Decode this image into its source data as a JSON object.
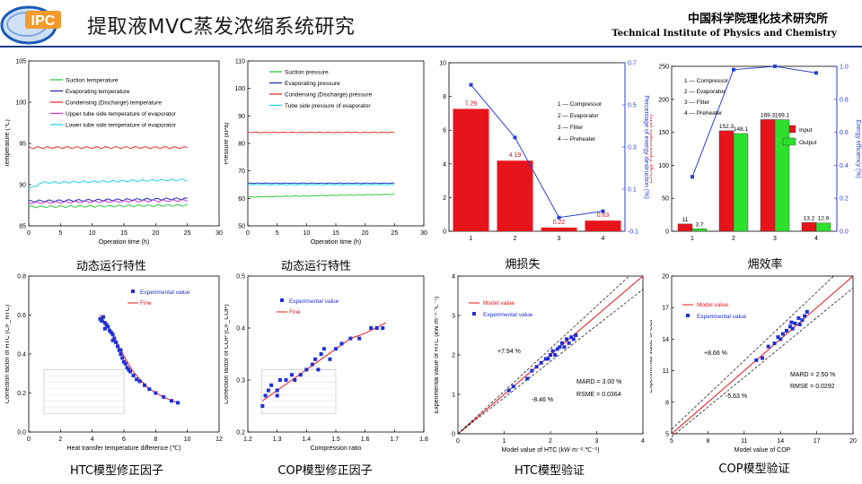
{
  "header": {
    "logo_text": "IPC",
    "title": "提取液MVC蒸发浓缩系统研究",
    "institute_cn": "中国科学院理化技术研究所",
    "institute_en": "Technical Institute of Physics and Chemistry"
  },
  "captions": [
    "动态运行特性",
    "动态运行特性",
    "㶲损失",
    "㶲效率",
    "HTC模型修正因子",
    "COP模型修正因子",
    "HTC模型验证",
    "COP模型验证"
  ],
  "chart_data": [
    {
      "type": "line",
      "xlabel": "Operation time (h)",
      "ylabel": "Temperature (℃)",
      "xlim": [
        0,
        30
      ],
      "xticks": [
        0,
        5,
        10,
        15,
        20,
        25,
        30
      ],
      "ylim": [
        85,
        105
      ],
      "yticks": [
        85,
        90,
        95,
        100,
        105
      ],
      "series": [
        {
          "name": "Suction temperature",
          "color": "#2ecc40",
          "x": [
            0,
            25
          ],
          "y": [
            87.3,
            87.5
          ]
        },
        {
          "name": "Evaporating temperature",
          "color": "#1f2fb8",
          "x": [
            0,
            25
          ],
          "y": [
            88.0,
            88.3
          ]
        },
        {
          "name": "Condensing (Discharge) temperature",
          "color": "#e8332a",
          "x": [
            0,
            25
          ],
          "y": [
            94.5,
            94.5
          ]
        },
        {
          "name": "Upper tube side temperature of evaporator",
          "color": "#c03ad6",
          "x": [
            0,
            25
          ],
          "y": [
            87.8,
            88.1
          ]
        },
        {
          "name": "Lower tube side temperature of evaporator",
          "color": "#22d3ee",
          "x": [
            0,
            25
          ],
          "y": [
            90.2,
            90.6
          ]
        }
      ]
    },
    {
      "type": "line",
      "xlabel": "Operation time (h)",
      "ylabel": "Pressure (kPa)",
      "xlim": [
        0,
        30
      ],
      "xticks": [
        0,
        5,
        10,
        15,
        20,
        25,
        30
      ],
      "ylim": [
        50,
        110
      ],
      "yticks": [
        50,
        60,
        70,
        80,
        90,
        100,
        110
      ],
      "series": [
        {
          "name": "Suction pressure",
          "color": "#2ecc40",
          "x": [
            0,
            25
          ],
          "y": [
            60.5,
            61.5
          ]
        },
        {
          "name": "Evaporating pressure",
          "color": "#1f2fb8",
          "x": [
            0,
            25
          ],
          "y": [
            65.5,
            65.5
          ]
        },
        {
          "name": "Condensing (Discharge) pressure",
          "color": "#e8332a",
          "x": [
            0,
            25
          ],
          "y": [
            84,
            84
          ]
        },
        {
          "name": "Tube side pressure of evaporator",
          "color": "#22d3ee",
          "x": [
            0,
            25
          ],
          "y": [
            65.0,
            65.0
          ]
        }
      ]
    },
    {
      "type": "bar",
      "categories": [
        "1",
        "2",
        "3",
        "4"
      ],
      "values": [
        7.26,
        4.19,
        0.22,
        0.63
      ],
      "labels": [
        "7.26",
        "4.19",
        "0.22",
        "0.63"
      ],
      "ylabel": "Exergy destruction (kW)",
      "ylim": [
        0,
        10
      ],
      "yticks": [
        0,
        2,
        4,
        6,
        8,
        10
      ],
      "y2label": "Percentage of exergy destruction (%)",
      "y2lim": [
        -0.1,
        0.7
      ],
      "y2ticks": [
        "-0.1",
        "0.1",
        "0.3",
        "0.5",
        "0.7"
      ],
      "line_values": [
        0.595,
        0.345,
        -0.035,
        -0.005
      ],
      "legend": [
        "1 — Compressor",
        "2 — Evaporator",
        "3 — Filter",
        "4 — Preheater"
      ]
    },
    {
      "type": "bar",
      "categories": [
        "1",
        "2",
        "3",
        "4"
      ],
      "series": [
        {
          "name": "Input",
          "color": "#e8141c",
          "values": [
            11,
            152.3,
            169.3,
            13.2
          ]
        },
        {
          "name": "Output",
          "color": "#2ee02e",
          "values": [
            3.7,
            148.1,
            169.1,
            12.6
          ]
        }
      ],
      "labels_input": [
        "11",
        "152.3",
        "169.3",
        "13.2"
      ],
      "labels_output": [
        "3.7",
        "148.1",
        "169.1",
        "12.6"
      ],
      "ylabel": "Exergy input/output (kW)",
      "ylim": [
        0,
        250
      ],
      "yticks": [
        0,
        50,
        100,
        150,
        200,
        250
      ],
      "y2label": "Exergy efficiency (%)",
      "y2lim": [
        0,
        1
      ],
      "y2ticks": [
        "0.0",
        "0.2",
        "0.4",
        "0.6",
        "0.8",
        "1.0"
      ],
      "line_values": [
        0.33,
        0.98,
        1.0,
        0.96
      ],
      "legend": [
        "1 — Compressor",
        "2 — Evaporator",
        "3 — Filter",
        "4 — Preheater"
      ]
    },
    {
      "type": "scatter",
      "xlabel": "Heat transfer temperature difference (℃)",
      "ylabel": "Correction factor of HTC (CF_HTC)",
      "xlim": [
        0,
        12
      ],
      "xticks": [
        0,
        2,
        4,
        6,
        8,
        10,
        12
      ],
      "ylim": [
        0,
        0.8
      ],
      "yticks": [
        "0.0",
        "0.2",
        "0.4",
        "0.6",
        "0.8"
      ],
      "legend": [
        "Experimental value",
        "Fine"
      ],
      "points": [
        [
          4.5,
          0.58
        ],
        [
          4.6,
          0.57
        ],
        [
          4.7,
          0.59
        ],
        [
          4.8,
          0.56
        ],
        [
          4.9,
          0.55
        ],
        [
          5.0,
          0.54
        ],
        [
          5.1,
          0.52
        ],
        [
          5.2,
          0.51
        ],
        [
          5.3,
          0.5
        ],
        [
          5.4,
          0.48
        ],
        [
          5.5,
          0.46
        ],
        [
          5.6,
          0.44
        ],
        [
          5.7,
          0.42
        ],
        [
          5.8,
          0.4
        ],
        [
          5.9,
          0.38
        ],
        [
          6.0,
          0.36
        ],
        [
          6.1,
          0.35
        ],
        [
          6.2,
          0.33
        ],
        [
          6.4,
          0.31
        ],
        [
          6.6,
          0.29
        ],
        [
          6.8,
          0.27
        ],
        [
          7.0,
          0.26
        ],
        [
          7.3,
          0.24
        ],
        [
          7.6,
          0.22
        ],
        [
          8.0,
          0.2
        ],
        [
          8.5,
          0.18
        ],
        [
          9.0,
          0.16
        ],
        [
          9.4,
          0.15
        ],
        [
          4.8,
          0.53
        ],
        [
          5.3,
          0.47
        ],
        [
          5.8,
          0.42
        ],
        [
          6.3,
          0.32
        ]
      ],
      "fit": [
        [
          4.5,
          0.6
        ],
        [
          5,
          0.54
        ],
        [
          5.5,
          0.47
        ],
        [
          6,
          0.39
        ],
        [
          6.5,
          0.32
        ],
        [
          7,
          0.27
        ],
        [
          7.5,
          0.23
        ],
        [
          8,
          0.2
        ],
        [
          8.5,
          0.18
        ],
        [
          9,
          0.16
        ],
        [
          9.5,
          0.15
        ]
      ]
    },
    {
      "type": "scatter",
      "xlabel": "Compression ratio",
      "ylabel": "Correction factor of COP (CF_COP)",
      "xlim": [
        1.2,
        1.8
      ],
      "xticks": [
        "1.2",
        "1.3",
        "1.4",
        "1.5",
        "1.6",
        "1.7",
        "1.8"
      ],
      "ylim": [
        0.2,
        0.5
      ],
      "yticks": [
        "0.2",
        "0.3",
        "0.4",
        "0.5"
      ],
      "legend": [
        "Experimental value",
        "Fine"
      ],
      "points": [
        [
          1.25,
          0.25
        ],
        [
          1.26,
          0.27
        ],
        [
          1.27,
          0.28
        ],
        [
          1.28,
          0.29
        ],
        [
          1.3,
          0.28
        ],
        [
          1.31,
          0.3
        ],
        [
          1.33,
          0.3
        ],
        [
          1.35,
          0.31
        ],
        [
          1.36,
          0.3
        ],
        [
          1.38,
          0.31
        ],
        [
          1.4,
          0.32
        ],
        [
          1.42,
          0.33
        ],
        [
          1.43,
          0.34
        ],
        [
          1.45,
          0.35
        ],
        [
          1.46,
          0.36
        ],
        [
          1.48,
          0.34
        ],
        [
          1.5,
          0.36
        ],
        [
          1.52,
          0.37
        ],
        [
          1.55,
          0.38
        ],
        [
          1.58,
          0.38
        ],
        [
          1.62,
          0.4
        ],
        [
          1.64,
          0.4
        ],
        [
          1.66,
          0.4
        ],
        [
          1.3,
          0.27
        ],
        [
          1.44,
          0.32
        ]
      ],
      "fit": [
        [
          1.25,
          0.26
        ],
        [
          1.3,
          0.28
        ],
        [
          1.35,
          0.3
        ],
        [
          1.4,
          0.32
        ],
        [
          1.45,
          0.34
        ],
        [
          1.5,
          0.36
        ],
        [
          1.55,
          0.38
        ],
        [
          1.6,
          0.39
        ],
        [
          1.67,
          0.41
        ]
      ]
    },
    {
      "type": "scatter",
      "xlabel": "Model value of HTC (kW·m⁻²·℃⁻¹)",
      "ylabel": "Experimental value of HTC (kW·m⁻²·℃⁻¹)",
      "xlim": [
        0,
        4
      ],
      "xticks": [
        0,
        1,
        2,
        3,
        4
      ],
      "ylim": [
        0,
        4
      ],
      "yticks": [
        0,
        1,
        2,
        3,
        4
      ],
      "legend": [
        "Model value",
        "Experimental value"
      ],
      "annotations": [
        "+7.94 %",
        "-8.46 %",
        "MARD = 3.00 %",
        "RSME = 0.0364"
      ],
      "bounds": [
        0.0794,
        -0.0846
      ],
      "points": [
        [
          1.1,
          1.1
        ],
        [
          1.2,
          1.2
        ],
        [
          1.5,
          1.4
        ],
        [
          1.6,
          1.6
        ],
        [
          1.7,
          1.7
        ],
        [
          1.8,
          1.8
        ],
        [
          1.9,
          1.9
        ],
        [
          2.0,
          2.0
        ],
        [
          2.05,
          2.1
        ],
        [
          2.1,
          2.0
        ],
        [
          2.2,
          2.2
        ],
        [
          2.25,
          2.3
        ],
        [
          2.3,
          2.2
        ],
        [
          2.35,
          2.4
        ],
        [
          2.4,
          2.3
        ],
        [
          2.45,
          2.45
        ],
        [
          2.5,
          2.4
        ],
        [
          2.55,
          2.5
        ],
        [
          1.95,
          1.9
        ],
        [
          2.15,
          2.15
        ]
      ]
    },
    {
      "type": "scatter",
      "xlabel": "Model value of COP",
      "ylabel": "Experimental value of COP",
      "xlim": [
        5,
        20
      ],
      "xticks": [
        5,
        8,
        11,
        14,
        17,
        20
      ],
      "ylim": [
        5,
        20
      ],
      "yticks": [
        5,
        8,
        11,
        14,
        17,
        20
      ],
      "legend": [
        "Model value",
        "Experimental value"
      ],
      "annotations": [
        "+8.66 %",
        "-5.63 %",
        "MARD = 2.50 %",
        "RMSE = 0.0292"
      ],
      "bounds": [
        0.0866,
        -0.0563
      ],
      "points": [
        [
          12,
          12
        ],
        [
          12.5,
          12.2
        ],
        [
          13,
          13.3
        ],
        [
          13.5,
          13.6
        ],
        [
          13.8,
          14.2
        ],
        [
          14,
          14
        ],
        [
          14.2,
          14.5
        ],
        [
          14.5,
          14.8
        ],
        [
          14.8,
          15.2
        ],
        [
          15,
          15
        ],
        [
          15.2,
          15.5
        ],
        [
          15.5,
          16
        ],
        [
          15.8,
          15.8
        ],
        [
          16,
          16.2
        ],
        [
          16.2,
          16.6
        ],
        [
          15.6,
          15.4
        ],
        [
          14.9,
          15.6
        ]
      ]
    }
  ]
}
